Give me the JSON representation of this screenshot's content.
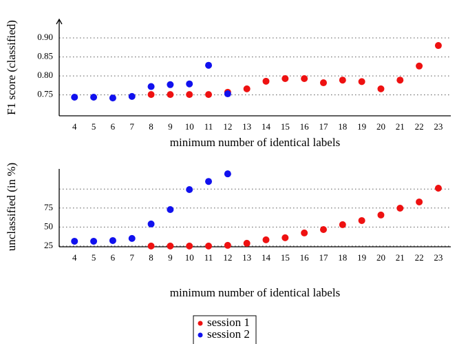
{
  "chart_data": [
    {
      "type": "scatter",
      "y_label": "F1 score (classified)",
      "x_label": "minimum number of identical labels",
      "x": [
        4,
        5,
        6,
        7,
        8,
        9,
        10,
        11,
        12,
        13,
        14,
        15,
        16,
        17,
        18,
        19,
        20,
        21,
        22,
        23
      ],
      "xlim": [
        3.2,
        23.65
      ],
      "ylim": [
        0.695,
        0.949
      ],
      "yticks": [
        0.75,
        {
          "value": 0.8,
          "label": "0.80"
        },
        0.85,
        {
          "value": 0.9,
          "label": "0.90"
        }
      ],
      "grid": true,
      "legend": "bottom",
      "series": [
        {
          "name": "session 1",
          "color": "#ee1111",
          "values": [
            null,
            null,
            null,
            null,
            0.751,
            0.751,
            0.751,
            0.751,
            0.757,
            0.766,
            0.786,
            0.793,
            0.793,
            0.782,
            0.789,
            0.785,
            0.766,
            0.789,
            0.826,
            0.88
          ]
        },
        {
          "name": "session 2",
          "color": "#1111ee",
          "values": [
            0.744,
            0.744,
            0.742,
            0.746,
            0.772,
            0.777,
            0.779,
            0.828,
            0.753,
            null,
            null,
            null,
            null,
            null,
            null,
            null,
            null,
            null,
            null,
            null
          ]
        }
      ]
    },
    {
      "type": "scatter",
      "y_label": "unclassified (in %)",
      "x_label": "minimum number of identical labels",
      "x": [
        4,
        5,
        6,
        7,
        8,
        9,
        10,
        11,
        12,
        13,
        14,
        15,
        16,
        17,
        18,
        19,
        20,
        21,
        22,
        23
      ],
      "xlim": [
        3.2,
        23.65
      ],
      "ylim": [
        24,
        126.5
      ],
      "yticks": [
        25,
        50,
        75
      ],
      "grid_lines": [
        25,
        50,
        75,
        100
      ],
      "series": [
        {
          "color": "#ee1111",
          "values": [
            null,
            null,
            null,
            null,
            25,
            25,
            25,
            25,
            25.9,
            28.6,
            33.2,
            35.9,
            42.2,
            46.7,
            53.1,
            58.5,
            65.8,
            74.8,
            83,
            101.1
          ]
        },
        {
          "color": "#1111ee",
          "values": [
            31.3,
            31.3,
            32.2,
            35,
            54,
            73,
            99.3,
            110,
            120,
            null,
            null,
            null,
            null,
            null,
            null,
            null,
            null,
            null,
            null,
            null
          ]
        }
      ]
    }
  ]
}
